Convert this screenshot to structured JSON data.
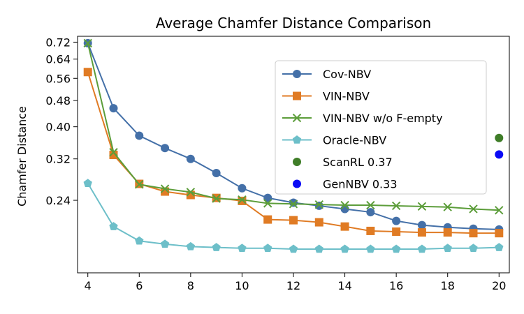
{
  "chart_data": {
    "type": "line",
    "title": "Average Chamfer Distance Comparison",
    "xlabel": "",
    "ylabel": "Chamfer Distance",
    "y_scale": "log",
    "xlim": [
      3.6,
      20.4
    ],
    "ylim": [
      0.145,
      0.75
    ],
    "x_ticks": [
      4,
      6,
      8,
      10,
      12,
      14,
      16,
      18,
      20
    ],
    "y_ticks": [
      0.24,
      0.32,
      0.4,
      0.48,
      0.56,
      0.64,
      0.72
    ],
    "y_tick_labels": [
      "0.24",
      "0.32",
      "0.40",
      "0.48",
      "0.56",
      "0.64",
      "0.72"
    ],
    "grid": false,
    "legend_position": "upper-right",
    "x": [
      4,
      5,
      6,
      7,
      8,
      9,
      10,
      11,
      12,
      13,
      14,
      15,
      16,
      17,
      18,
      19,
      20
    ],
    "series": [
      {
        "name": "Cov-NBV",
        "color": "#4470a8",
        "marker": "circle",
        "values": [
          0.715,
          0.455,
          0.376,
          0.345,
          0.32,
          0.29,
          0.261,
          0.244,
          0.236,
          0.231,
          0.226,
          0.221,
          0.208,
          0.202,
          0.199,
          0.197,
          0.196
        ]
      },
      {
        "name": "VIN-NBV",
        "color": "#e07b24",
        "marker": "square",
        "values": [
          0.585,
          0.329,
          0.269,
          0.255,
          0.249,
          0.244,
          0.239,
          0.21,
          0.209,
          0.206,
          0.2,
          0.194,
          0.193,
          0.192,
          0.192,
          0.191,
          0.191
        ]
      },
      {
        "name": "VIN-NBV w/o F-empty",
        "color": "#5c9d3a",
        "marker": "x",
        "values": [
          0.715,
          0.335,
          0.268,
          0.26,
          0.254,
          0.243,
          0.241,
          0.235,
          0.234,
          0.233,
          0.232,
          0.232,
          0.231,
          0.23,
          0.229,
          0.226,
          0.224
        ]
      },
      {
        "name": "Oracle-NBV",
        "color": "#6dbfc9",
        "marker": "pentagon",
        "values": [
          0.27,
          0.2,
          0.181,
          0.177,
          0.174,
          0.173,
          0.172,
          0.172,
          0.171,
          0.171,
          0.171,
          0.171,
          0.171,
          0.171,
          0.172,
          0.172,
          0.173
        ]
      }
    ],
    "extra_points": [
      {
        "name": "ScanRL 0.37",
        "x": 20,
        "y": 0.37,
        "color": "#3f7d28"
      },
      {
        "name": "GenNBV 0.33",
        "x": 20,
        "y": 0.33,
        "color": "#0a0af5"
      }
    ]
  }
}
